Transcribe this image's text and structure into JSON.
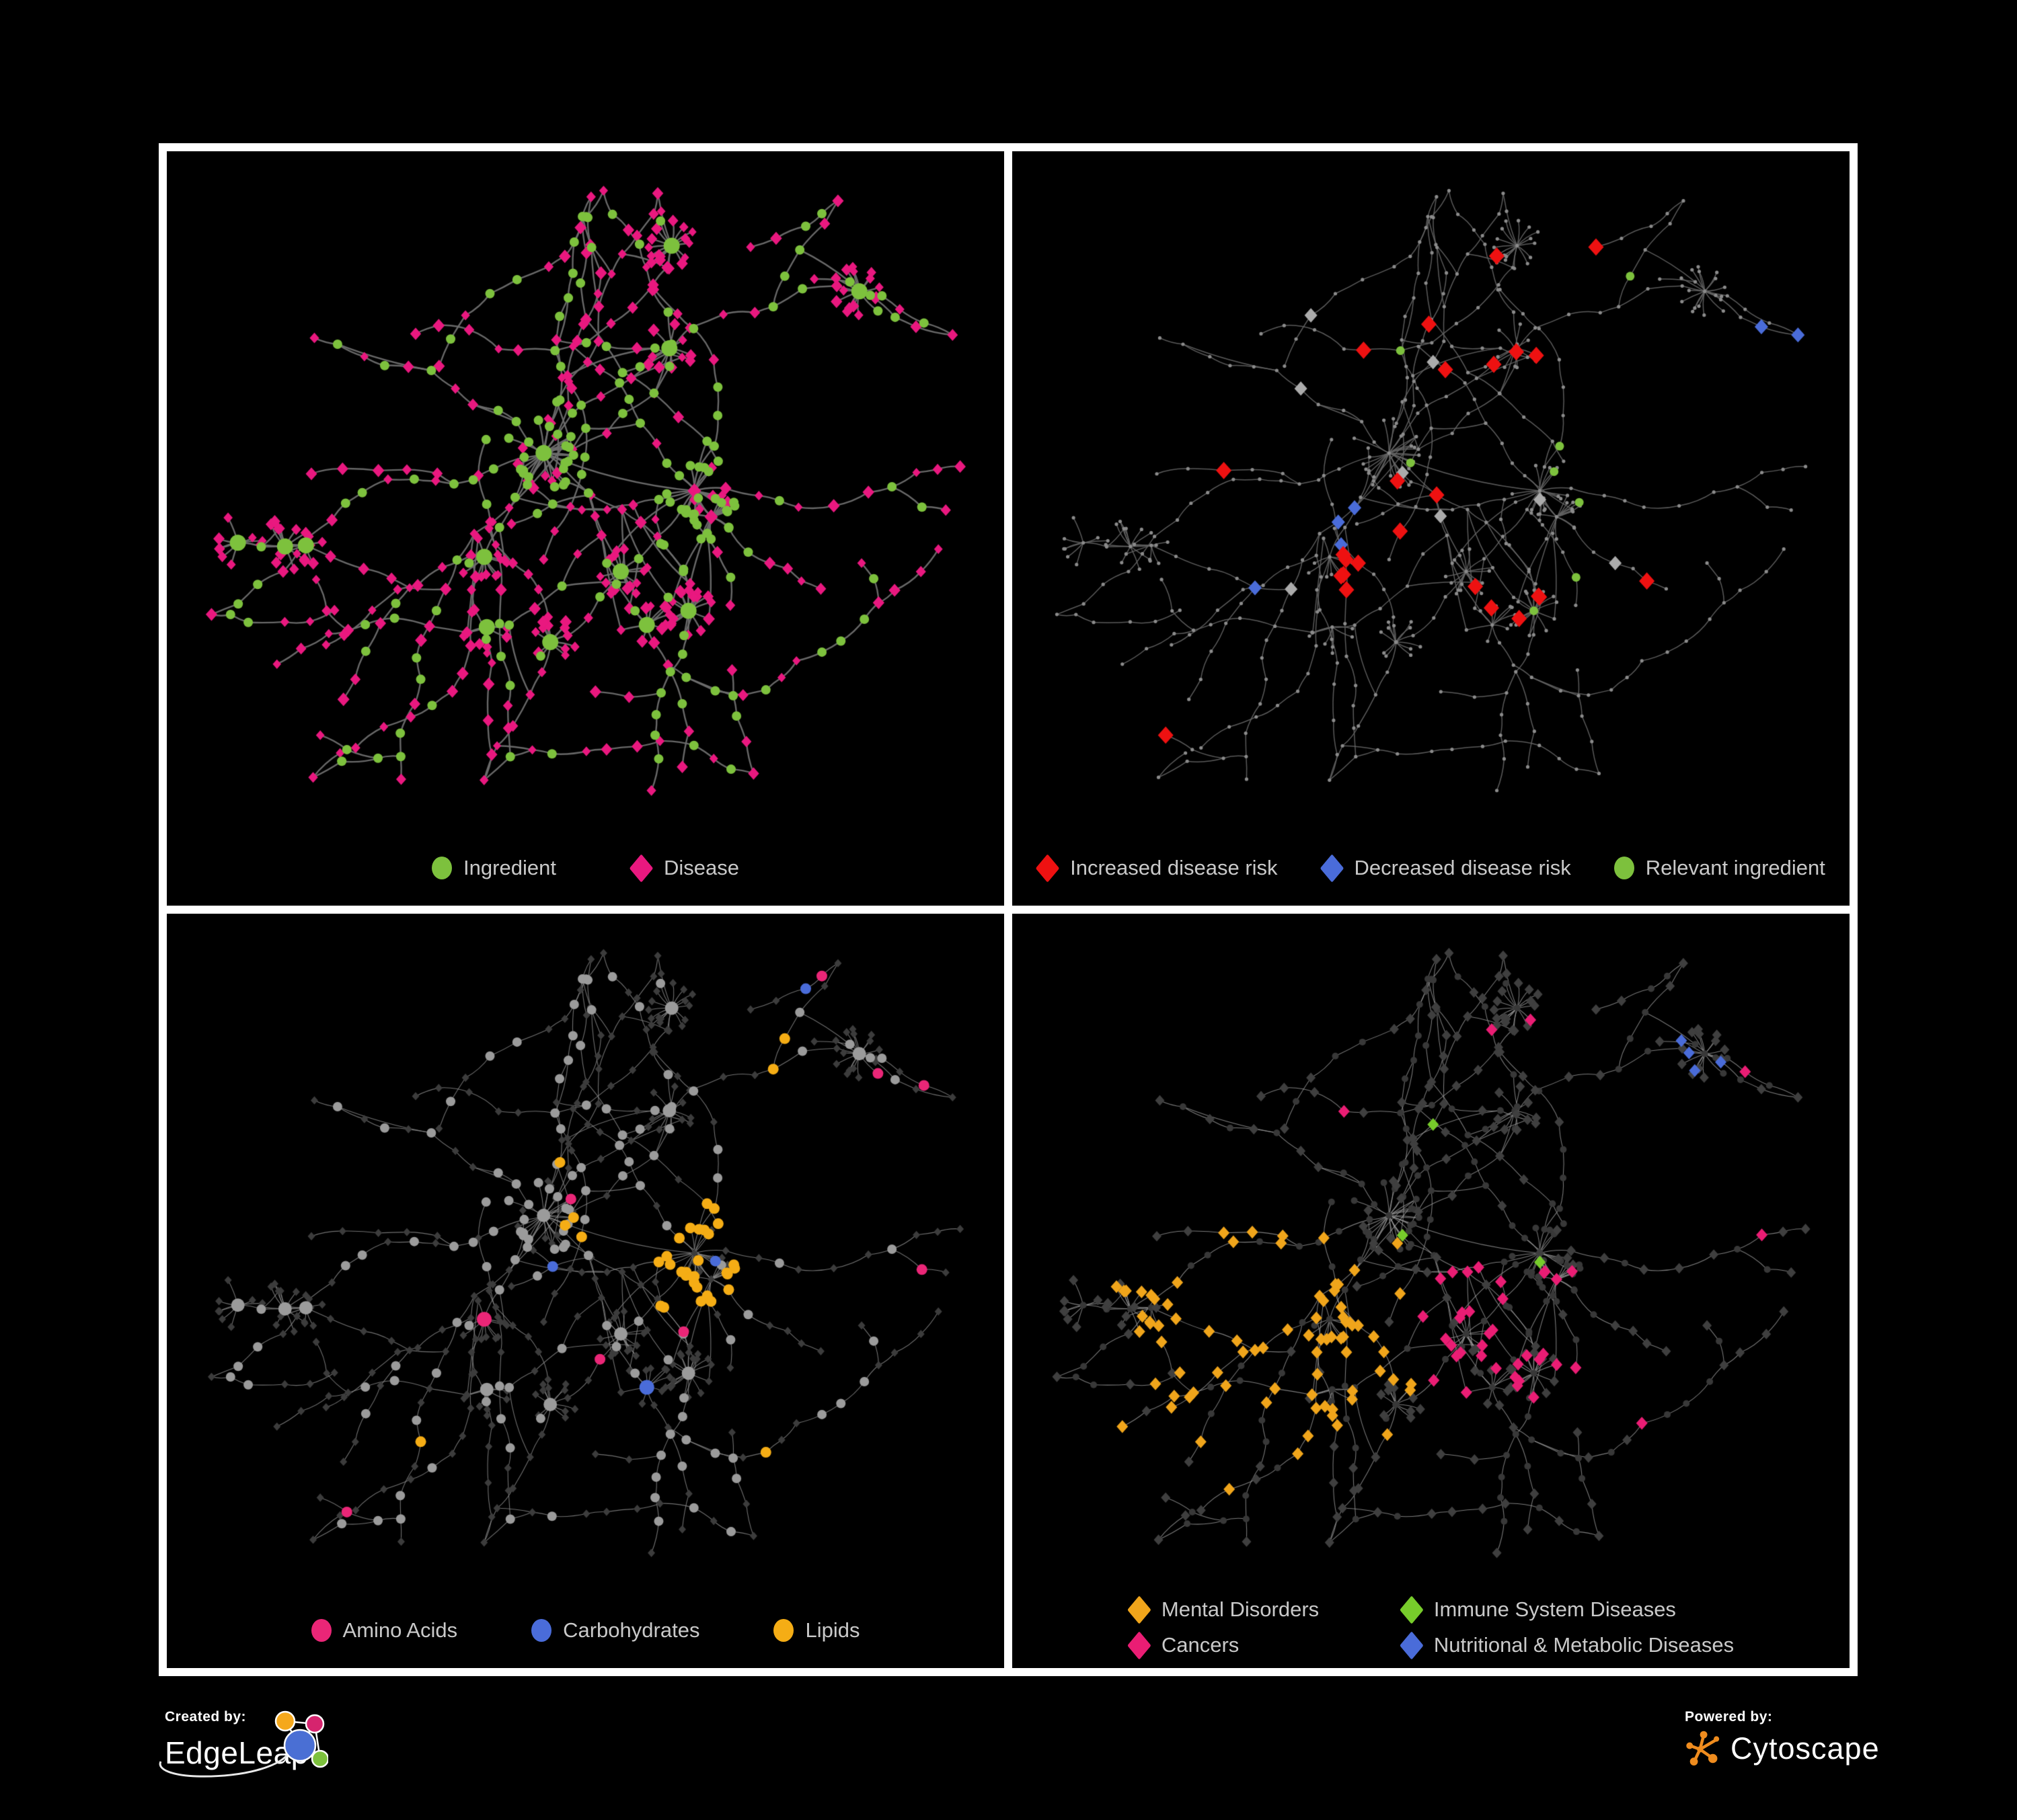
{
  "figure": {
    "background_color": "#000000",
    "frame_color": "#ffffff",
    "legend_text_color": "#c9c9c9"
  },
  "panels": [
    {
      "name": "ingredient-disease-network",
      "style": {
        "edge_color": "#6e6e6e",
        "edge_width": 2.4
      },
      "legend": [
        {
          "label": "Ingredient",
          "shape": "circle",
          "color": "#7dc13d"
        },
        {
          "label": "Disease",
          "shape": "diamond",
          "color": "#e9187f"
        }
      ]
    },
    {
      "name": "disease-risk-network",
      "style": {
        "edge_color": "#646464",
        "edge_width": 1.5,
        "base_node_color": "#8b8b8b",
        "muted_diamond_color": "#ababab"
      },
      "legend": [
        {
          "label": "Increased disease risk",
          "shape": "diamond",
          "color": "#ee1111"
        },
        {
          "label": "Decreased disease risk",
          "shape": "diamond",
          "color": "#4a6cd9"
        },
        {
          "label": "Relevant ingredient",
          "shape": "circle",
          "color": "#7dc13d"
        }
      ]
    },
    {
      "name": "nutrient-class-network",
      "style": {
        "edge_color": "#8d8d8d",
        "edge_width": 1.1,
        "base_circle_color": "#9b9b9b",
        "base_diamond_color": "#3c3c3c"
      },
      "legend": [
        {
          "label": "Amino Acids",
          "shape": "circle",
          "color": "#ea2677"
        },
        {
          "label": "Carbohydrates",
          "shape": "circle",
          "color": "#4a6cd9"
        },
        {
          "label": "Lipids",
          "shape": "circle",
          "color": "#f5ad15"
        }
      ]
    },
    {
      "name": "disease-category-network",
      "style": {
        "edge_color": "#9b9b9b",
        "edge_width": 1.05,
        "base_circle_color": "#383838",
        "base_diamond_color": "#3f3f3f"
      },
      "legend": [
        {
          "label": "Mental Disorders",
          "shape": "diamond",
          "color": "#f0a51b"
        },
        {
          "label": "Immune System Diseases",
          "shape": "diamond",
          "color": "#77cc2b"
        },
        {
          "label": "Cancers",
          "shape": "diamond",
          "color": "#ea1d74"
        },
        {
          "label": "Nutritional & Metabolic Diseases",
          "shape": "diamond",
          "color": "#4a6cd9"
        }
      ]
    }
  ],
  "footer": {
    "created_by_label": "Created by:",
    "created_by_name": "EdgeLeap",
    "powered_by_label": "Powered by:",
    "powered_by_name": "Cytoscape"
  },
  "logo_colors": {
    "edgeleap_blue": "#4a6fd4",
    "edgeleap_orange": "#f5a81c",
    "edgeleap_magenta": "#d6246e",
    "edgeleap_green": "#7dc13d",
    "cytoscape_orange": "#ef8c1e"
  }
}
